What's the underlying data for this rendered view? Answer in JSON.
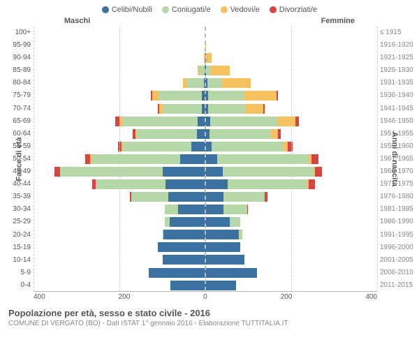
{
  "legend": [
    {
      "label": "Celibi/Nubili",
      "color": "#3b72a1"
    },
    {
      "label": "Coniugati/e",
      "color": "#b6d7a8"
    },
    {
      "label": "Vedovi/e",
      "color": "#f6c260"
    },
    {
      "label": "Divorziati/e",
      "color": "#d64541"
    }
  ],
  "genders": {
    "male": "Maschi",
    "female": "Femmine"
  },
  "y_left_title": "Fasce di età",
  "y_right_title": "Anni di nascita",
  "x_max": 400,
  "x_ticks": [
    "400",
    "200",
    "0",
    "200",
    "400"
  ],
  "grid_positions_pct": [
    0,
    25,
    50,
    75,
    100
  ],
  "caption": {
    "title": "Popolazione per età, sesso e stato civile - 2016",
    "sub": "COMUNE DI VERGATO (BO) - Dati ISTAT 1° gennaio 2016 - Elaborazione TUTTITALIA.IT"
  },
  "rows": [
    {
      "age": "100+",
      "birth": "≤ 1915",
      "m": {
        "c": 0,
        "k": 0,
        "v": 5,
        "d": 0
      },
      "f": {
        "c": 0,
        "k": 0,
        "v": 5,
        "d": 0
      }
    },
    {
      "age": "95-99",
      "birth": "1916-1920",
      "m": {
        "c": 5,
        "k": 0,
        "v": 5,
        "d": 0
      },
      "f": {
        "c": 0,
        "k": 5,
        "v": 15,
        "d": 0
      }
    },
    {
      "age": "90-94",
      "birth": "1921-1925",
      "m": {
        "c": 5,
        "k": 20,
        "v": 10,
        "d": 0
      },
      "f": {
        "c": 5,
        "k": 10,
        "v": 60,
        "d": 0
      }
    },
    {
      "age": "85-89",
      "birth": "1926-1930",
      "m": {
        "c": 5,
        "k": 60,
        "v": 20,
        "d": 0
      },
      "f": {
        "c": 5,
        "k": 30,
        "v": 115,
        "d": 0
      }
    },
    {
      "age": "80-84",
      "birth": "1931-1935",
      "m": {
        "c": 10,
        "k": 110,
        "v": 25,
        "d": 0
      },
      "f": {
        "c": 10,
        "k": 65,
        "v": 130,
        "d": 0
      }
    },
    {
      "age": "75-79",
      "birth": "1936-1940",
      "m": {
        "c": 15,
        "k": 180,
        "v": 25,
        "d": 5
      },
      "f": {
        "c": 10,
        "k": 130,
        "v": 115,
        "d": 5
      }
    },
    {
      "age": "70-74",
      "birth": "1941-1945",
      "m": {
        "c": 15,
        "k": 175,
        "v": 15,
        "d": 5
      },
      "f": {
        "c": 10,
        "k": 150,
        "v": 70,
        "d": 5
      }
    },
    {
      "age": "65-69",
      "birth": "1946-1950",
      "m": {
        "c": 25,
        "k": 240,
        "v": 10,
        "d": 15
      },
      "f": {
        "c": 15,
        "k": 215,
        "v": 55,
        "d": 10
      }
    },
    {
      "age": "60-64",
      "birth": "1951-1955",
      "m": {
        "c": 30,
        "k": 215,
        "v": 5,
        "d": 10
      },
      "f": {
        "c": 15,
        "k": 215,
        "v": 25,
        "d": 10
      }
    },
    {
      "age": "55-59",
      "birth": "1956-1960",
      "m": {
        "c": 45,
        "k": 225,
        "v": 5,
        "d": 10
      },
      "f": {
        "c": 20,
        "k": 235,
        "v": 15,
        "d": 15
      }
    },
    {
      "age": "50-54",
      "birth": "1961-1965",
      "m": {
        "c": 70,
        "k": 245,
        "v": 5,
        "d": 15
      },
      "f": {
        "c": 35,
        "k": 260,
        "v": 10,
        "d": 20
      }
    },
    {
      "age": "45-49",
      "birth": "1966-1970",
      "m": {
        "c": 105,
        "k": 255,
        "v": 0,
        "d": 15
      },
      "f": {
        "c": 50,
        "k": 255,
        "v": 5,
        "d": 20
      }
    },
    {
      "age": "40-44",
      "birth": "1971-1975",
      "m": {
        "c": 115,
        "k": 200,
        "v": 0,
        "d": 10
      },
      "f": {
        "c": 65,
        "k": 230,
        "v": 5,
        "d": 20
      }
    },
    {
      "age": "35-39",
      "birth": "1976-1980",
      "m": {
        "c": 130,
        "k": 130,
        "v": 0,
        "d": 5
      },
      "f": {
        "c": 70,
        "k": 160,
        "v": 0,
        "d": 10
      }
    },
    {
      "age": "30-34",
      "birth": "1981-1985",
      "m": {
        "c": 130,
        "k": 65,
        "v": 0,
        "d": 0
      },
      "f": {
        "c": 85,
        "k": 110,
        "v": 0,
        "d": 5
      }
    },
    {
      "age": "25-29",
      "birth": "1986-1990",
      "m": {
        "c": 170,
        "k": 25,
        "v": 0,
        "d": 0
      },
      "f": {
        "c": 125,
        "k": 55,
        "v": 0,
        "d": 0
      }
    },
    {
      "age": "20-24",
      "birth": "1991-1995",
      "m": {
        "c": 195,
        "k": 5,
        "v": 0,
        "d": 0
      },
      "f": {
        "c": 170,
        "k": 15,
        "v": 0,
        "d": 0
      }
    },
    {
      "age": "15-19",
      "birth": "1996-2000",
      "m": {
        "c": 210,
        "k": 0,
        "v": 0,
        "d": 0
      },
      "f": {
        "c": 180,
        "k": 0,
        "v": 0,
        "d": 0
      }
    },
    {
      "age": "10-14",
      "birth": "2001-2005",
      "m": {
        "c": 200,
        "k": 0,
        "v": 0,
        "d": 0
      },
      "f": {
        "c": 190,
        "k": 0,
        "v": 0,
        "d": 0
      }
    },
    {
      "age": "5-9",
      "birth": "2006-2010",
      "m": {
        "c": 230,
        "k": 0,
        "v": 0,
        "d": 0
      },
      "f": {
        "c": 220,
        "k": 0,
        "v": 0,
        "d": 0
      }
    },
    {
      "age": "0-4",
      "birth": "2011-2015",
      "m": {
        "c": 180,
        "k": 0,
        "v": 0,
        "d": 0
      },
      "f": {
        "c": 170,
        "k": 0,
        "v": 0,
        "d": 0
      }
    }
  ]
}
